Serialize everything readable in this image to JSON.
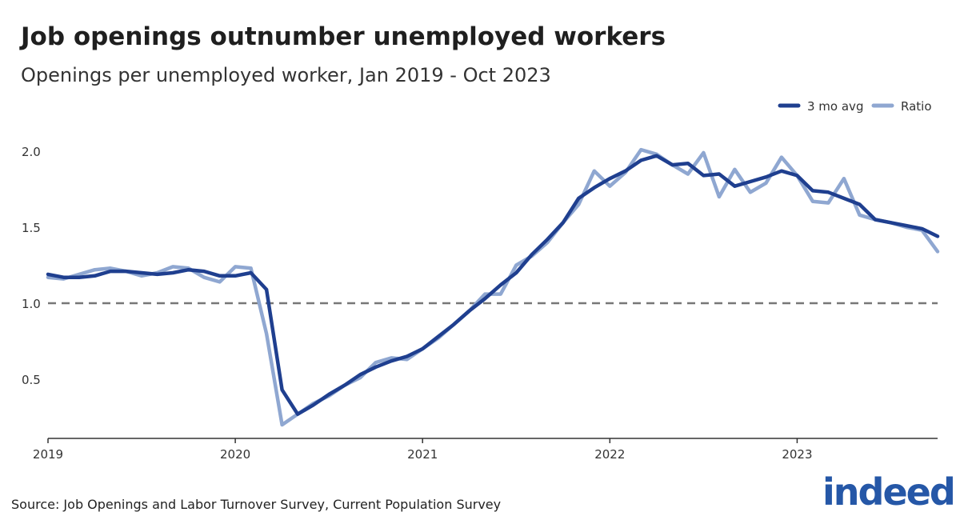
{
  "title": "Job openings outnumber unemployed workers",
  "subtitle": "Openings per unemployed worker, Jan 2019 - Oct 2023",
  "source": "Source: Job Openings and Labor Turnover Survey, Current Population Survey",
  "logo_text": "indeed",
  "colors": {
    "avg": "#1f3f8f",
    "ratio": "#8fa7d1",
    "reference": "#777777",
    "brand": "#2557a7"
  },
  "chart_data": {
    "type": "line",
    "title": "Job openings outnumber unemployed workers",
    "subtitle": "Openings per unemployed worker, Jan 2019 - Oct 2023",
    "xlabel": "",
    "ylabel": "",
    "x_start": "2019-01",
    "x_end": "2023-10",
    "x_ticks": [
      "2019",
      "2020",
      "2021",
      "2022",
      "2023"
    ],
    "y_ticks": [
      "0.5",
      "1.0",
      "1.5",
      "2.0"
    ],
    "ylim": [
      0.15,
      2.1
    ],
    "reference_line": 1.0,
    "legend_position": "top-right",
    "grid": false,
    "months": [
      "2019-01",
      "2019-02",
      "2019-03",
      "2019-04",
      "2019-05",
      "2019-06",
      "2019-07",
      "2019-08",
      "2019-09",
      "2019-10",
      "2019-11",
      "2019-12",
      "2020-01",
      "2020-02",
      "2020-03",
      "2020-04",
      "2020-05",
      "2020-06",
      "2020-07",
      "2020-08",
      "2020-09",
      "2020-10",
      "2020-11",
      "2020-12",
      "2021-01",
      "2021-02",
      "2021-03",
      "2021-04",
      "2021-05",
      "2021-06",
      "2021-07",
      "2021-08",
      "2021-09",
      "2021-10",
      "2021-11",
      "2021-12",
      "2022-01",
      "2022-02",
      "2022-03",
      "2022-04",
      "2022-05",
      "2022-06",
      "2022-07",
      "2022-08",
      "2022-09",
      "2022-10",
      "2022-11",
      "2022-12",
      "2023-01",
      "2023-02",
      "2023-03",
      "2023-04",
      "2023-05",
      "2023-06",
      "2023-07",
      "2023-08",
      "2023-09",
      "2023-10"
    ],
    "series": [
      {
        "name": "3 mo avg",
        "values": [
          1.19,
          1.17,
          1.17,
          1.18,
          1.21,
          1.21,
          1.2,
          1.19,
          1.2,
          1.22,
          1.21,
          1.18,
          1.18,
          1.2,
          1.09,
          0.43,
          0.27,
          0.33,
          0.4,
          0.46,
          0.53,
          0.58,
          0.62,
          0.65,
          0.7,
          0.78,
          0.86,
          0.95,
          1.03,
          1.12,
          1.2,
          1.32,
          1.42,
          1.53,
          1.69,
          1.76,
          1.82,
          1.87,
          1.94,
          1.97,
          1.91,
          1.92,
          1.84,
          1.85,
          1.77,
          1.8,
          1.83,
          1.87,
          1.84,
          1.74,
          1.73,
          1.69,
          1.65,
          1.55,
          1.53,
          1.51,
          1.49,
          1.44
        ]
      },
      {
        "name": "Ratio",
        "values": [
          1.17,
          1.16,
          1.19,
          1.22,
          1.23,
          1.21,
          1.18,
          1.2,
          1.24,
          1.23,
          1.17,
          1.14,
          1.24,
          1.23,
          0.8,
          0.2,
          0.27,
          0.34,
          0.39,
          0.46,
          0.51,
          0.61,
          0.64,
          0.63,
          0.7,
          0.77,
          0.86,
          0.95,
          1.06,
          1.06,
          1.25,
          1.31,
          1.4,
          1.53,
          1.65,
          1.87,
          1.77,
          1.86,
          2.01,
          1.98,
          1.91,
          1.85,
          1.99,
          1.7,
          1.88,
          1.73,
          1.79,
          1.96,
          1.84,
          1.67,
          1.66,
          1.82,
          1.58,
          1.55,
          1.53,
          1.5,
          1.48,
          1.34
        ]
      }
    ]
  }
}
